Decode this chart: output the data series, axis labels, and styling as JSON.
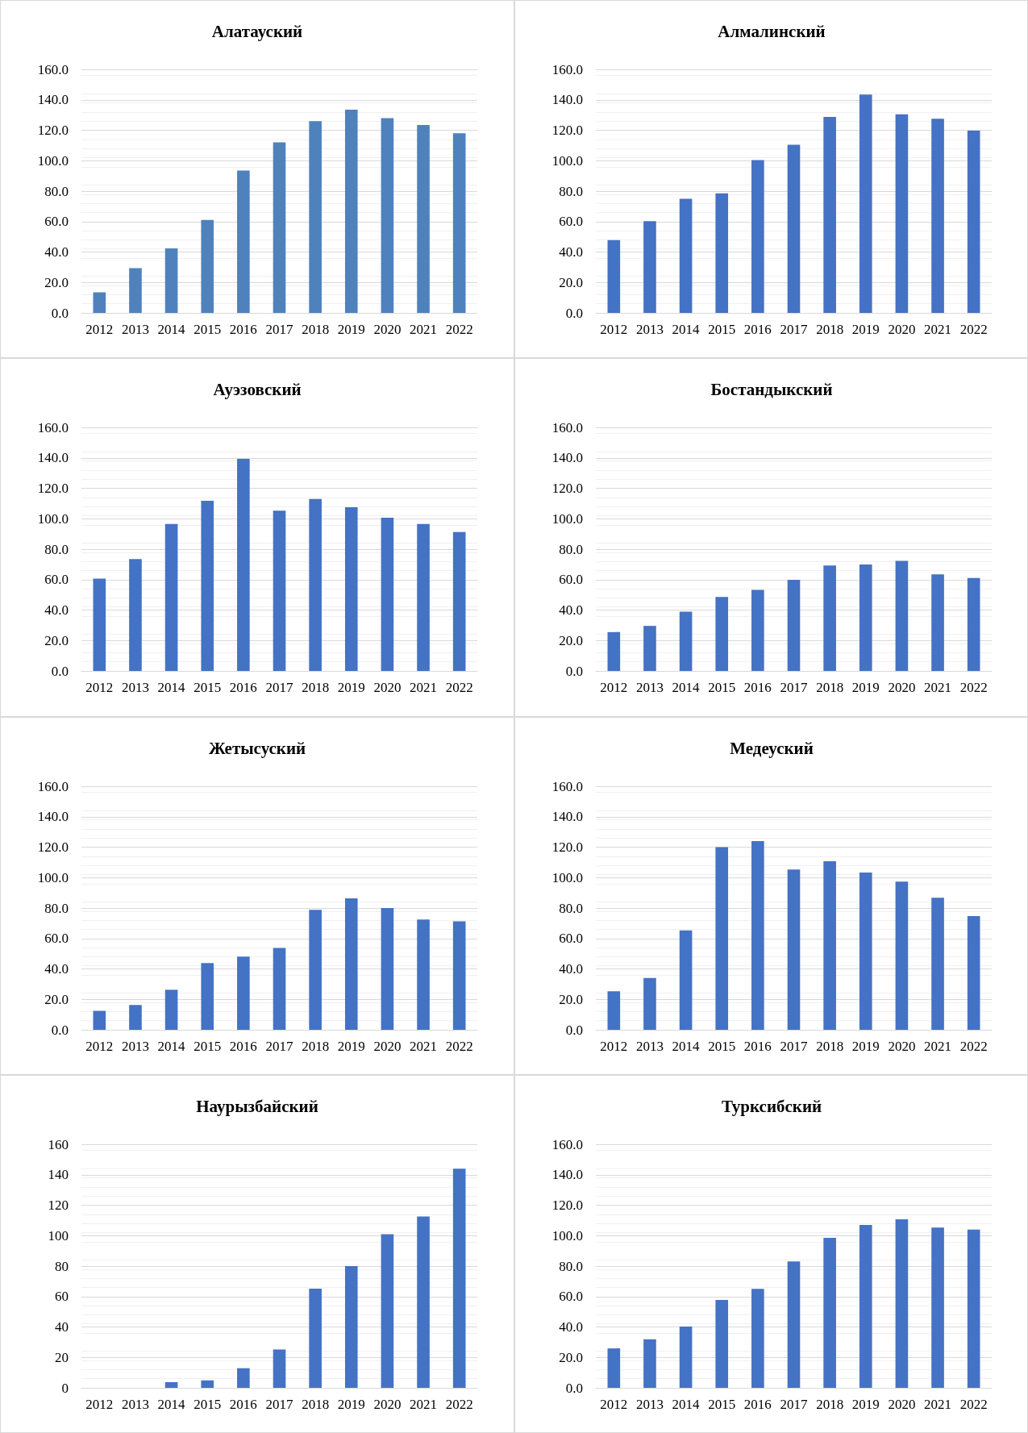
{
  "chart_data": [
    {
      "type": "bar",
      "title": "Алатауский",
      "categories": [
        "2012",
        "2013",
        "2014",
        "2015",
        "2016",
        "2017",
        "2018",
        "2019",
        "2020",
        "2021",
        "2022"
      ],
      "values": [
        13.5,
        29.4,
        42.4,
        61,
        93.5,
        112,
        126,
        133.5,
        128,
        123.5,
        118
      ],
      "color": "#4f81bd",
      "ylim": [
        0,
        160
      ],
      "yticks": [
        {
          "value": 0,
          "label": "0.0"
        },
        {
          "value": 20,
          "label": "20.0"
        },
        {
          "value": 40,
          "label": "40.0"
        },
        {
          "value": 60,
          "label": "60.0"
        },
        {
          "value": 80,
          "label": "80.0"
        },
        {
          "value": 100,
          "label": "100.0"
        },
        {
          "value": 120,
          "label": "120.0"
        },
        {
          "value": 140,
          "label": "140.0"
        },
        {
          "value": 160,
          "label": "160.0"
        }
      ],
      "grid": "y"
    },
    {
      "type": "bar",
      "title": "Алмалинский",
      "categories": [
        "2012",
        "2013",
        "2014",
        "2015",
        "2016",
        "2017",
        "2018",
        "2019",
        "2020",
        "2021",
        "2022"
      ],
      "values": [
        47.8,
        60.2,
        75,
        78.5,
        100.4,
        110.4,
        128.7,
        143.4,
        130.5,
        127.5,
        119.8
      ],
      "color": "#4472c4",
      "ylim": [
        0,
        160
      ],
      "yticks": [
        {
          "value": 0,
          "label": "0.0"
        },
        {
          "value": 20,
          "label": "20.0"
        },
        {
          "value": 40,
          "label": "40.0"
        },
        {
          "value": 60,
          "label": "60.0"
        },
        {
          "value": 80,
          "label": "80.0"
        },
        {
          "value": 100,
          "label": "100.0"
        },
        {
          "value": 120,
          "label": "120.0"
        },
        {
          "value": 140,
          "label": "140.0"
        },
        {
          "value": 160,
          "label": "160.0"
        }
      ],
      "grid": "y"
    },
    {
      "type": "bar",
      "title": "Ауэзовский",
      "categories": [
        "2012",
        "2013",
        "2014",
        "2015",
        "2016",
        "2017",
        "2018",
        "2019",
        "2020",
        "2021",
        "2022"
      ],
      "values": [
        60.6,
        73.5,
        96.5,
        111.8,
        139.4,
        105.3,
        113,
        107.6,
        100.6,
        96.5,
        91.2
      ],
      "color": "#4472c4",
      "ylim": [
        0,
        160
      ],
      "yticks": [
        {
          "value": 0,
          "label": "0.0"
        },
        {
          "value": 20,
          "label": "20.0"
        },
        {
          "value": 40,
          "label": "40.0"
        },
        {
          "value": 60,
          "label": "60.0"
        },
        {
          "value": 80,
          "label": "80.0"
        },
        {
          "value": 100,
          "label": "100.0"
        },
        {
          "value": 120,
          "label": "120.0"
        },
        {
          "value": 140,
          "label": "140.0"
        },
        {
          "value": 160,
          "label": "160.0"
        }
      ],
      "grid": "y"
    },
    {
      "type": "bar",
      "title": "Бостандыкский",
      "categories": [
        "2012",
        "2013",
        "2014",
        "2015",
        "2016",
        "2017",
        "2018",
        "2019",
        "2020",
        "2021",
        "2022"
      ],
      "values": [
        25.5,
        29.6,
        39,
        48.6,
        53.3,
        59.9,
        69.3,
        70,
        72.3,
        63.4,
        61
      ],
      "color": "#4472c4",
      "ylim": [
        0,
        160
      ],
      "yticks": [
        {
          "value": 0,
          "label": "0.0"
        },
        {
          "value": 20,
          "label": "20.0"
        },
        {
          "value": 40,
          "label": "40.0"
        },
        {
          "value": 60,
          "label": "60.0"
        },
        {
          "value": 80,
          "label": "80.0"
        },
        {
          "value": 100,
          "label": "100.0"
        },
        {
          "value": 120,
          "label": "120.0"
        },
        {
          "value": 140,
          "label": "140.0"
        },
        {
          "value": 160,
          "label": "160.0"
        }
      ],
      "grid": "y"
    },
    {
      "type": "bar",
      "title": "Жетысуский",
      "categories": [
        "2012",
        "2013",
        "2014",
        "2015",
        "2016",
        "2017",
        "2018",
        "2019",
        "2020",
        "2021",
        "2022"
      ],
      "values": [
        12.5,
        16.3,
        26.3,
        43.8,
        48.1,
        53.8,
        78.8,
        86.3,
        80,
        72.5,
        71.3
      ],
      "color": "#4472c4",
      "ylim": [
        0,
        160
      ],
      "yticks": [
        {
          "value": 0,
          "label": "0.0"
        },
        {
          "value": 20,
          "label": "20.0"
        },
        {
          "value": 40,
          "label": "40.0"
        },
        {
          "value": 60,
          "label": "60.0"
        },
        {
          "value": 80,
          "label": "80.0"
        },
        {
          "value": 100,
          "label": "100.0"
        },
        {
          "value": 120,
          "label": "120.0"
        },
        {
          "value": 140,
          "label": "140.0"
        },
        {
          "value": 160,
          "label": "160.0"
        }
      ],
      "grid": "y"
    },
    {
      "type": "bar",
      "title": "Медеуский",
      "categories": [
        "2012",
        "2013",
        "2014",
        "2015",
        "2016",
        "2017",
        "2018",
        "2019",
        "2020",
        "2021",
        "2022"
      ],
      "values": [
        25.3,
        34,
        65.3,
        120,
        124,
        105.3,
        110.7,
        103.3,
        97.3,
        86.7,
        74.7
      ],
      "color": "#4472c4",
      "ylim": [
        0,
        160
      ],
      "yticks": [
        {
          "value": 0,
          "label": "0.0"
        },
        {
          "value": 20,
          "label": "20.0"
        },
        {
          "value": 40,
          "label": "40.0"
        },
        {
          "value": 60,
          "label": "60.0"
        },
        {
          "value": 80,
          "label": "80.0"
        },
        {
          "value": 100,
          "label": "100.0"
        },
        {
          "value": 120,
          "label": "120.0"
        },
        {
          "value": 140,
          "label": "140.0"
        },
        {
          "value": 160,
          "label": "160.0"
        }
      ],
      "grid": "y"
    },
    {
      "type": "bar",
      "title": "Наурызбайский",
      "categories": [
        "2012",
        "2013",
        "2014",
        "2015",
        "2016",
        "2017",
        "2018",
        "2019",
        "2020",
        "2021",
        "2022"
      ],
      "values": [
        0,
        0,
        3.7,
        4.9,
        12.9,
        25.2,
        65.2,
        80,
        100.9,
        112.6,
        144
      ],
      "color": "#4472c4",
      "ylim": [
        0,
        160
      ],
      "yticks": [
        0,
        20,
        40,
        60,
        80,
        100,
        120,
        140,
        160
      ],
      "grid": "y"
    },
    {
      "type": "bar",
      "title": "Турксибский",
      "categories": [
        "2012",
        "2013",
        "2014",
        "2015",
        "2016",
        "2017",
        "2018",
        "2019",
        "2020",
        "2021",
        "2022"
      ],
      "values": [
        25.9,
        31.9,
        40.3,
        57.7,
        65,
        83,
        98.6,
        107,
        110.7,
        105.3,
        104
      ],
      "color": "#4472c4",
      "ylim": [
        0,
        160
      ],
      "yticks": [
        {
          "value": 0,
          "label": "0.0"
        },
        {
          "value": 20,
          "label": "20.0"
        },
        {
          "value": 40,
          "label": "40.0"
        },
        {
          "value": 60,
          "label": "60.0"
        },
        {
          "value": 80,
          "label": "80.0"
        },
        {
          "value": 100,
          "label": "100.0"
        },
        {
          "value": 120,
          "label": "120.0"
        },
        {
          "value": 140,
          "label": "140.0"
        },
        {
          "value": 160,
          "label": "160.0"
        }
      ],
      "grid": "y"
    }
  ]
}
